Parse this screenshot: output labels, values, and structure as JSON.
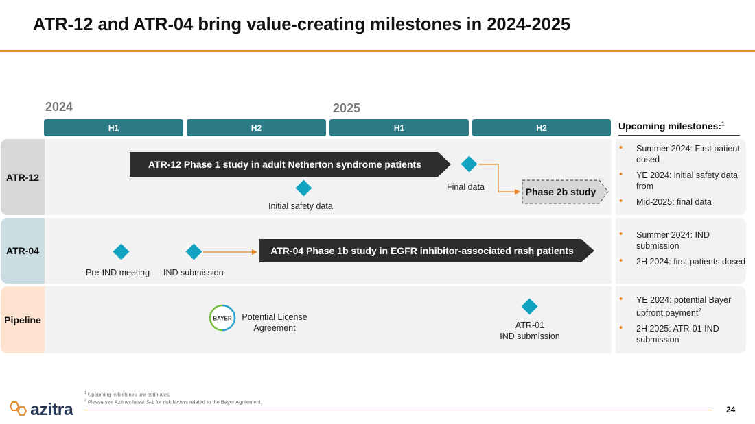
{
  "title": "ATR-12 and ATR-04 bring value-creating milestones in 2024-2025",
  "timeline": {
    "years": [
      "2024",
      "2025"
    ],
    "periods": [
      "H1",
      "H2",
      "H1",
      "H2"
    ]
  },
  "upcoming": {
    "heading": "Upcoming milestones:",
    "sup": "1"
  },
  "rows": {
    "atr12": {
      "label": "ATR-12",
      "study": "ATR-12 Phase 1 study in adult Netherton syndrome patients",
      "milestone_initial": "Initial safety data",
      "milestone_final": "Final data",
      "next_study": "Phase 2b study",
      "bullets": [
        "Summer 2024: First patient dosed",
        "YE 2024: initial safety data from",
        "Mid-2025: final data"
      ]
    },
    "atr04": {
      "label": "ATR-04",
      "milestone_preind": "Pre-IND meeting",
      "milestone_ind": "IND submission",
      "study": "ATR-04 Phase 1b study in EGFR inhibitor-associated rash patients",
      "bullets": [
        "Summer 2024: IND submission",
        "2H 2024: first patients dosed"
      ]
    },
    "pipeline": {
      "label": "Pipeline",
      "bayer_letters": "BAYER",
      "license": "Potential License Agreement",
      "atr01_line1": "ATR-01",
      "atr01_line2": "IND submission",
      "bullet1": "YE 2024: potential Bayer upfront payment",
      "bullet1_sup": "2",
      "bullet2": "2H 2025: ATR-01 IND submission"
    }
  },
  "footnotes": {
    "note1_sup": "1",
    "note1": " Upcoming milestones are estimates.",
    "note2_sup": "2",
    "note2": " Please see Azitra's latest S-1 for risk factors related to the Bayer Agreement."
  },
  "logo": "azitra",
  "page_number": "24",
  "colors": {
    "accent": "#e8892b",
    "teal": "#2c7a86",
    "diamond": "#12a3c2",
    "dark": "#2d2d2d"
  }
}
